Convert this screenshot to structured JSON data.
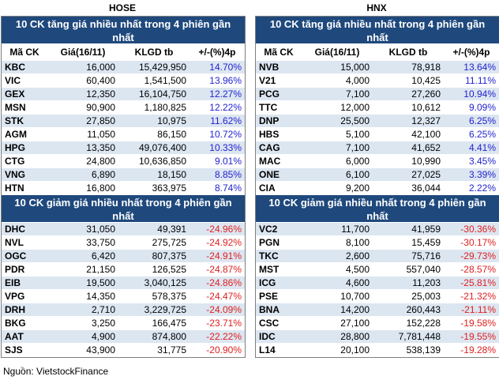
{
  "hose": {
    "exchange": "HOSE",
    "gainers_title": "10 CK tăng giá nhiều nhất trong 4 phiên gần nhất",
    "losers_title": "10 CK giảm giá nhiều nhất trong 4 phiên gần nhất",
    "headers": [
      "Mã CK",
      "Giá(16/11)",
      "KLGD tb",
      "+/-(%)4p"
    ],
    "gainers": [
      [
        "KBC",
        "16,000",
        "15,429,950",
        "14.70%"
      ],
      [
        "VIC",
        "60,400",
        "1,541,500",
        "13.96%"
      ],
      [
        "GEX",
        "12,350",
        "16,104,750",
        "12.27%"
      ],
      [
        "MSN",
        "90,900",
        "1,180,825",
        "12.22%"
      ],
      [
        "STK",
        "27,850",
        "10,975",
        "11.62%"
      ],
      [
        "AGM",
        "11,050",
        "86,150",
        "10.72%"
      ],
      [
        "HPG",
        "13,350",
        "49,076,400",
        "10.33%"
      ],
      [
        "CTG",
        "24,800",
        "10,636,850",
        "9.01%"
      ],
      [
        "VNG",
        "6,890",
        "18,150",
        "8.85%"
      ],
      [
        "HTN",
        "16,800",
        "363,975",
        "8.74%"
      ]
    ],
    "losers": [
      [
        "DHC",
        "31,050",
        "49,391",
        "-24.96%"
      ],
      [
        "NVL",
        "33,750",
        "275,725",
        "-24.92%"
      ],
      [
        "OGC",
        "6,420",
        "807,375",
        "-24.91%"
      ],
      [
        "PDR",
        "21,150",
        "126,525",
        "-24.87%"
      ],
      [
        "EIB",
        "19,500",
        "3,040,125",
        "-24.86%"
      ],
      [
        "VPG",
        "14,350",
        "578,375",
        "-24.47%"
      ],
      [
        "DRH",
        "2,710",
        "3,229,725",
        "-24.09%"
      ],
      [
        "BKG",
        "3,250",
        "166,475",
        "-23.71%"
      ],
      [
        "AAT",
        "4,900",
        "874,800",
        "-22.22%"
      ],
      [
        "SJS",
        "43,900",
        "31,775",
        "-20.90%"
      ]
    ]
  },
  "hnx": {
    "exchange": "HNX",
    "gainers_title": "10 CK tăng giá nhiều nhất trong 4 phiên gần nhất",
    "losers_title": "10 CK giảm giá nhiều nhất trong 4 phiên gần nhất",
    "headers": [
      "Mã CK",
      "Giá(16/11)",
      "KLGD tb",
      "+/-(%)4p"
    ],
    "gainers": [
      [
        "NVB",
        "15,000",
        "78,918",
        "13.64%"
      ],
      [
        "V21",
        "4,000",
        "10,425",
        "11.11%"
      ],
      [
        "PCG",
        "7,100",
        "27,260",
        "10.94%"
      ],
      [
        "TTC",
        "12,000",
        "10,612",
        "9.09%"
      ],
      [
        "DNP",
        "25,500",
        "12,327",
        "6.25%"
      ],
      [
        "HBS",
        "5,100",
        "42,100",
        "6.25%"
      ],
      [
        "CAG",
        "7,100",
        "41,652",
        "4.41%"
      ],
      [
        "MAC",
        "6,000",
        "10,990",
        "3.45%"
      ],
      [
        "ONE",
        "6,100",
        "27,025",
        "3.39%"
      ],
      [
        "CIA",
        "9,200",
        "36,044",
        "2.22%"
      ]
    ],
    "losers": [
      [
        "VC2",
        "11,700",
        "41,959",
        "-30.36%"
      ],
      [
        "PGN",
        "8,100",
        "15,459",
        "-30.17%"
      ],
      [
        "TKC",
        "2,600",
        "75,716",
        "-29.73%"
      ],
      [
        "MST",
        "4,500",
        "557,040",
        "-28.57%"
      ],
      [
        "ICG",
        "4,600",
        "11,203",
        "-25.81%"
      ],
      [
        "PSE",
        "10,700",
        "25,003",
        "-21.32%"
      ],
      [
        "BNA",
        "14,200",
        "260,443",
        "-21.11%"
      ],
      [
        "CSC",
        "27,100",
        "152,228",
        "-19.58%"
      ],
      [
        "IDC",
        "28,800",
        "7,781,448",
        "-19.55%"
      ],
      [
        "L14",
        "20,100",
        "538,139",
        "-19.28%"
      ]
    ]
  },
  "source": "Nguồn: VietstockFinance",
  "colors": {
    "title_bg": "#1f497d",
    "alt_row": "#dce6f1",
    "up": "#1f1fcf",
    "down": "#e02020"
  }
}
